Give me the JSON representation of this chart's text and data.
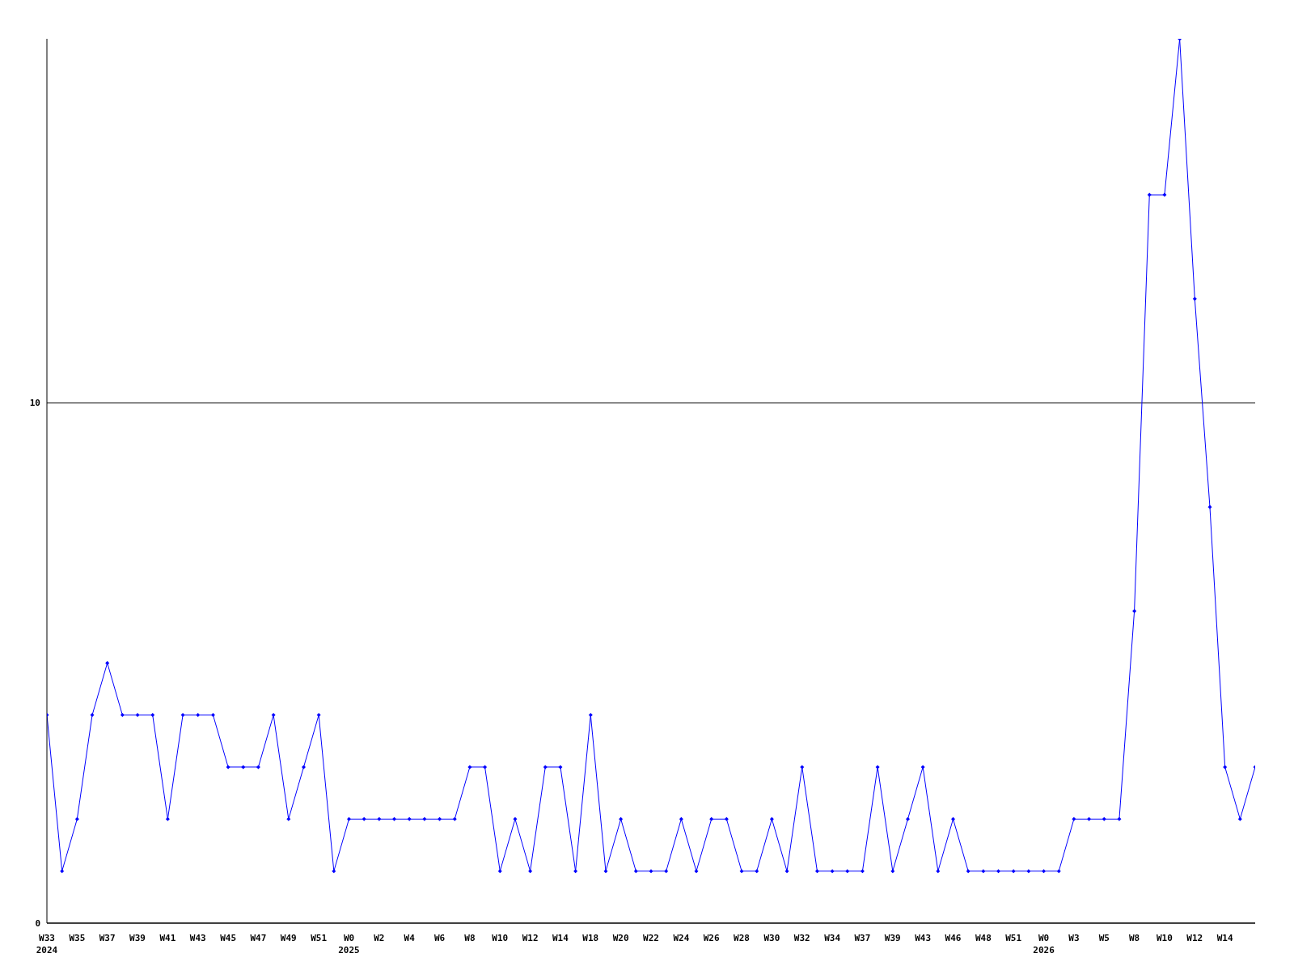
{
  "chart_data": {
    "type": "line",
    "categories": [
      "W33\n2024",
      null,
      "W35",
      null,
      "W37",
      null,
      "W39",
      null,
      "W41",
      null,
      "W43",
      null,
      "W45",
      null,
      "W47",
      null,
      "W49",
      null,
      "W51",
      null,
      "W0\n2025",
      null,
      "W2",
      null,
      "W4",
      null,
      "W6",
      null,
      "W8",
      null,
      "W10",
      null,
      "W12",
      null,
      "W14",
      null,
      "W18",
      null,
      "W20",
      null,
      "W22",
      null,
      "W24",
      null,
      "W26",
      null,
      "W28",
      null,
      "W30",
      null,
      "W32",
      null,
      "W34",
      null,
      "W37",
      null,
      "W39",
      null,
      "W43",
      null,
      "W46",
      null,
      "W48",
      null,
      "W51",
      null,
      "W0\n2026",
      null,
      "W3",
      null,
      "W5",
      null,
      "W8",
      null,
      "W10",
      null,
      "W12",
      null,
      "W14",
      null,
      null
    ],
    "series": [
      {
        "color": "#0000ff",
        "values": [
          4,
          1,
          2,
          4,
          5,
          4,
          4,
          4,
          2,
          4,
          4,
          4,
          3,
          3,
          3,
          4,
          2,
          3,
          4,
          1,
          2,
          2,
          2,
          2,
          2,
          2,
          2,
          2,
          3,
          3,
          1,
          2,
          1,
          3,
          3,
          1,
          4,
          1,
          2,
          1,
          1,
          1,
          2,
          1,
          2,
          2,
          1,
          1,
          2,
          1,
          3,
          1,
          1,
          1,
          1,
          3,
          1,
          2,
          3,
          1,
          2,
          1,
          1,
          1,
          1,
          1,
          1,
          1,
          2,
          2,
          2,
          2,
          6,
          14,
          14,
          17,
          12,
          8,
          3,
          2,
          3
        ]
      }
    ],
    "ylim": [
      0,
      17
    ],
    "yticks": [
      0,
      10
    ],
    "grid": "y",
    "marker": "diamond",
    "line_style": "solid"
  }
}
